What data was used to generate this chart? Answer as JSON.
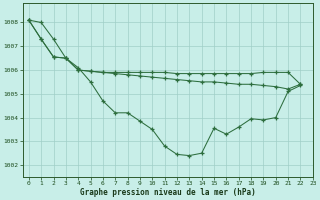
{
  "title": "Graphe pression niveau de la mer (hPa)",
  "background_color": "#c8eee8",
  "grid_color": "#a0cfc8",
  "line_color": "#2d6e3e",
  "xlim": [
    -0.5,
    23
  ],
  "ylim": [
    1001.5,
    1008.8
  ],
  "yticks": [
    1002,
    1003,
    1004,
    1005,
    1006,
    1007,
    1008
  ],
  "xticks": [
    0,
    1,
    2,
    3,
    4,
    5,
    6,
    7,
    8,
    9,
    10,
    11,
    12,
    13,
    14,
    15,
    16,
    17,
    18,
    19,
    20,
    21,
    22,
    23
  ],
  "s1": [
    1008.1,
    1008.0,
    1007.3,
    1006.5,
    1006.1,
    1005.5,
    1004.7,
    1004.2,
    1004.2,
    1003.85,
    1003.5,
    1002.8,
    1002.45,
    1002.4,
    1002.5,
    1003.55,
    1003.3,
    1003.6,
    1003.95,
    1003.9,
    1004.0,
    1005.1,
    1005.35
  ],
  "s2": [
    1008.1,
    1007.3,
    1006.55,
    1006.5,
    1006.0,
    1005.95,
    1005.9,
    1005.85,
    1005.8,
    1005.75,
    1005.7,
    1005.65,
    1005.6,
    1005.55,
    1005.5,
    1005.5,
    1005.45,
    1005.4,
    1005.4,
    1005.35,
    1005.3,
    1005.2,
    1005.4
  ],
  "s3": [
    1008.1,
    1007.3,
    1006.55,
    1006.5,
    1006.0,
    1005.95,
    1005.9,
    1005.9,
    1005.9,
    1005.9,
    1005.9,
    1005.9,
    1005.85,
    1005.85,
    1005.85,
    1005.85,
    1005.85,
    1005.85,
    1005.85,
    1005.9,
    1005.9,
    1005.9,
    1005.4
  ]
}
